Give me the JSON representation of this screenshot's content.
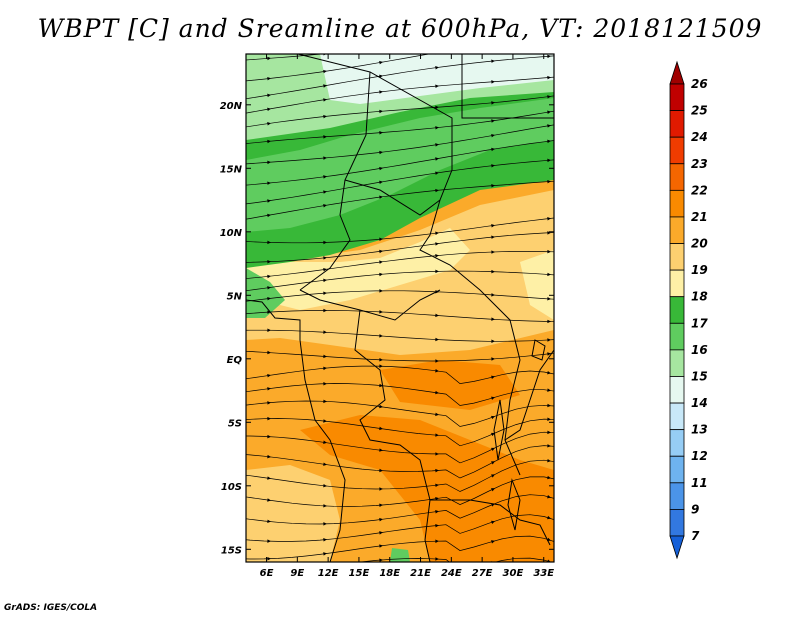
{
  "title": "WBPT [C] and Sreamline at 600hPa, VT: 2018121509",
  "credit": "GrADS: IGES/COLA",
  "axes": {
    "lat_labels": [
      "20N",
      "15N",
      "10N",
      "5N",
      "EQ",
      "5S",
      "10S",
      "15S"
    ],
    "lon_labels": [
      "6E",
      "9E",
      "12E",
      "15E",
      "18E",
      "21E",
      "24E",
      "27E",
      "30E",
      "33E"
    ],
    "lat_range": [
      -16,
      24
    ],
    "lon_range": [
      4,
      34
    ]
  },
  "colorbar": {
    "labels": [
      "26",
      "25",
      "24",
      "23",
      "22",
      "21",
      "20",
      "19",
      "18",
      "17",
      "16",
      "15",
      "14",
      "13",
      "12",
      "11",
      "9",
      "7"
    ],
    "colors": [
      "#a00000",
      "#c00000",
      "#e01a00",
      "#f03c00",
      "#f56600",
      "#f98a00",
      "#fbaa2a",
      "#fdd070",
      "#fef0a6",
      "#38b838",
      "#5fcc5f",
      "#a6e6a0",
      "#e6f8f0",
      "#c8e8f8",
      "#96cdf5",
      "#6eb3ef",
      "#4b94e8",
      "#3278e0",
      "#1560d8"
    ]
  },
  "map": {
    "colors": {
      "light_cyan": "#e6f8f0",
      "pale_green": "#a6e6a0",
      "mid_green": "#5fcc5f",
      "dark_green": "#38b838",
      "cream": "#fef0a6",
      "light_orange": "#fdd070",
      "orange": "#fbaa2a",
      "deep_orange": "#f98a00",
      "border": "#000000",
      "streamline": "#000000"
    }
  }
}
